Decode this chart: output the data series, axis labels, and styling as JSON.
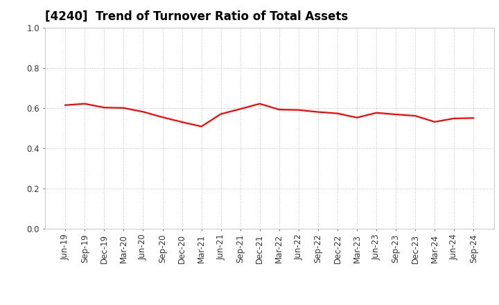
{
  "title": "[4240]  Trend of Turnover Ratio of Total Assets",
  "labels": [
    "Jun-19",
    "Sep-19",
    "Dec-19",
    "Mar-20",
    "Jun-20",
    "Sep-20",
    "Dec-20",
    "Mar-21",
    "Jun-21",
    "Sep-21",
    "Dec-21",
    "Mar-22",
    "Jun-22",
    "Sep-22",
    "Dec-22",
    "Mar-23",
    "Jun-23",
    "Sep-23",
    "Dec-23",
    "Mar-24",
    "Jun-24",
    "Sep-24"
  ],
  "values": [
    0.614,
    0.621,
    0.602,
    0.6,
    0.581,
    0.554,
    0.53,
    0.508,
    0.57,
    0.595,
    0.621,
    0.592,
    0.59,
    0.58,
    0.573,
    0.552,
    0.576,
    0.568,
    0.561,
    0.531,
    0.548,
    0.55
  ],
  "line_color": "#FF0000",
  "line_width": 1.6,
  "ylim": [
    0.0,
    1.0
  ],
  "yticks": [
    0.0,
    0.2,
    0.4,
    0.6,
    0.8,
    1.0
  ],
  "grid_color": "#aaaaaa",
  "background_color": "#ffffff",
  "title_fontsize": 12,
  "tick_fontsize": 8.5
}
